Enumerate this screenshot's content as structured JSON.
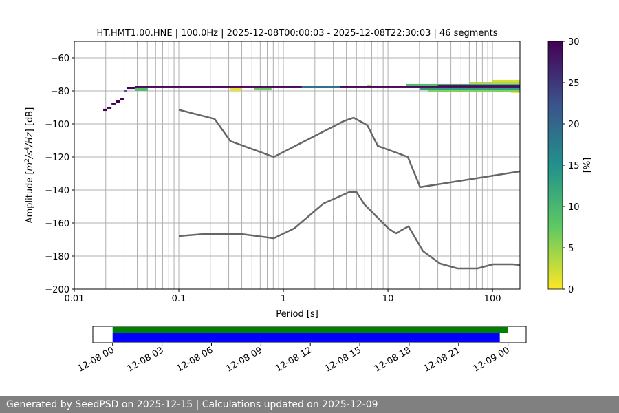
{
  "chart_data": [
    {
      "type": "heatmap",
      "title": "HT.HMT1.00.HNE | 100.0Hz | 2025-12-08T00:00:03 - 2025-12-08T22:30:03 | 46 segments",
      "xlabel": "Period [s]",
      "ylabel": "Amplitude [m²/s⁴/Hz] [dB]",
      "xscale": "log",
      "xlim": [
        0.01,
        183
      ],
      "ylim": [
        -200,
        -50
      ],
      "grid": true,
      "x_ticks": [
        {
          "v": 0.01,
          "label": "0.01"
        },
        {
          "v": 0.1,
          "label": "0.1"
        },
        {
          "v": 1,
          "label": "1"
        },
        {
          "v": 10,
          "label": "10"
        },
        {
          "v": 100,
          "label": "100"
        }
      ],
      "y_ticks": [
        {
          "v": -60,
          "label": "−60"
        },
        {
          "v": -80,
          "label": "−80"
        },
        {
          "v": -100,
          "label": "−100"
        },
        {
          "v": -120,
          "label": "−120"
        },
        {
          "v": -140,
          "label": "−140"
        },
        {
          "v": -160,
          "label": "−160"
        },
        {
          "v": -180,
          "label": "−180"
        },
        {
          "v": -200,
          "label": "−200"
        }
      ],
      "colormap": "viridis_r",
      "colorbar": {
        "label": "[%]",
        "range": [
          0,
          30
        ],
        "ticks": [
          "0",
          "5",
          "10",
          "15",
          "20",
          "25",
          "30"
        ]
      },
      "histogram_cells": [
        {
          "period": [
            0.0189,
            0.0207
          ],
          "db": [
            -92.1,
            -90.8
          ],
          "percent": 30
        },
        {
          "period": [
            0.0207,
            0.0227
          ],
          "db": [
            -90.8,
            -89.6
          ],
          "percent": 30
        },
        {
          "period": [
            0.0227,
            0.0248
          ],
          "db": [
            -88.3,
            -87.1
          ],
          "percent": 30
        },
        {
          "period": [
            0.0248,
            0.0272
          ],
          "db": [
            -87.1,
            -85.8
          ],
          "percent": 30
        },
        {
          "period": [
            0.0272,
            0.0298
          ],
          "db": [
            -85.8,
            -84.6
          ],
          "percent": 30
        },
        {
          "period": [
            0.0298,
            0.0321
          ],
          "db": [
            -80.4,
            -79.6
          ],
          "percent": 22
        },
        {
          "period": [
            0.0321,
            0.0379
          ],
          "db": [
            -79.2,
            -77.9
          ],
          "percent": 30
        },
        {
          "period": [
            0.0379,
            0.0506
          ],
          "db": [
            -80.0,
            -78.3
          ],
          "percent": 9
        },
        {
          "period": [
            0.311,
            0.4
          ],
          "db": [
            -80.0,
            -78.3
          ],
          "percent": 1
        },
        {
          "period": [
            0.527,
            0.77
          ],
          "db": [
            -79.6,
            -78.3
          ],
          "percent": 7
        },
        {
          "period": [
            6.3,
            6.9
          ],
          "db": [
            -77.1,
            -76.2
          ],
          "percent": 3
        },
        {
          "period": [
            20,
            183
          ],
          "db": [
            -79.6,
            -78.3
          ],
          "percent": 13
        },
        {
          "period": [
            24,
            183
          ],
          "db": [
            -80.4,
            -79.6
          ],
          "percent": 6
        },
        {
          "period": [
            15,
            183
          ],
          "db": [
            -77.1,
            -75.8
          ],
          "percent": 9
        },
        {
          "period": [
            60,
            183
          ],
          "db": [
            -75.8,
            -74.6
          ],
          "percent": 4
        },
        {
          "period": [
            100,
            183
          ],
          "db": [
            -74.6,
            -73.3
          ],
          "percent": 2
        },
        {
          "period": [
            150,
            183
          ],
          "db": [
            -81.2,
            -80.4
          ],
          "percent": 1
        },
        {
          "period": [
            0.0379,
            183
          ],
          "db": [
            -78.3,
            -77.1
          ],
          "percent": 30
        },
        {
          "period": [
            1.5,
            3.5
          ],
          "db": [
            -78.3,
            -77.1
          ],
          "percent": 18
        },
        {
          "period": [
            30,
            183
          ],
          "db": [
            -77.1,
            -76.2
          ],
          "percent": 27
        }
      ],
      "series": [
        {
          "period": [
            0.1,
            0.22,
            0.311,
            0.81,
            3.79,
            4.69,
            6.35,
            7.98,
            15.5,
            20.3,
            183
          ],
          "db": [
            -91.4,
            -97.0,
            -110.4,
            -120.0,
            -98.3,
            -96.25,
            -100.8,
            -113.3,
            -120.0,
            -138.3,
            -128.75
          ]
        },
        {
          "period": [
            0.1,
            0.17,
            0.4,
            0.81,
            1.27,
            2.4,
            4.28,
            5.0,
            5.96,
            10.1,
            11.9,
            15.7,
            21.6,
            31.6,
            46.3,
            71.8,
            101,
            156,
            183
          ],
          "db": [
            -167.9,
            -166.7,
            -166.7,
            -169.2,
            -163.3,
            -148.3,
            -141.25,
            -141.25,
            -148.75,
            -163.3,
            -166.25,
            -162.0,
            -177.0,
            -184.6,
            -187.5,
            -187.5,
            -185.0,
            -185.0,
            -185.4
          ]
        }
      ],
      "series_color": "#666666"
    },
    {
      "type": "timeline",
      "x_ticks": [
        "12-08 00",
        "12-08 03",
        "12-08 06",
        "12-08 09",
        "12-08 12",
        "12-08 15",
        "12-08 18",
        "12-08 21",
        "12-09 00"
      ],
      "xlim_hours": [
        -1.2,
        25.1
      ],
      "bars": [
        {
          "color": "#008000",
          "start_hours": 0,
          "end_hours": 24
        },
        {
          "color": "#0000ff",
          "start_hours": 0,
          "end_hours": 23.5
        }
      ]
    }
  ],
  "footer": {
    "text": "Generated by SeedPSD on 2025-12-15 | Calculations updated on 2025-12-09"
  }
}
